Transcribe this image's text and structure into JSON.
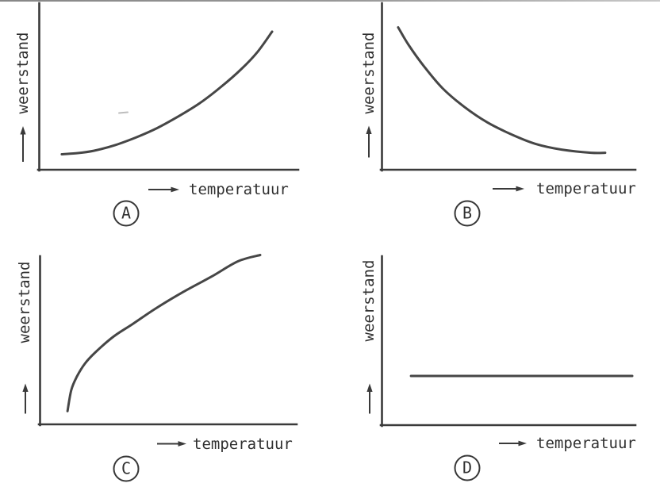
{
  "figure": {
    "ylabel": "weerstand",
    "xlabel": "temperatuur",
    "panel_labels": [
      "A",
      "B",
      "C",
      "D"
    ]
  },
  "colors": {
    "background": "#ffffff",
    "ink": "#3a3a3a",
    "curve": "#464646",
    "scan_edge": "#9a9a9a"
  },
  "chart_data": [
    {
      "type": "line",
      "panel": "A",
      "xlabel": "temperatuur",
      "ylabel": "weerstand",
      "trend": "increasing-convex (resistance rises ever faster with temperature)",
      "x": [
        0.087,
        0.149,
        0.21,
        0.293,
        0.375,
        0.455,
        0.538,
        0.62,
        0.7,
        0.782,
        0.844,
        0.899
      ],
      "y": [
        0.093,
        0.1,
        0.114,
        0.148,
        0.195,
        0.25,
        0.321,
        0.4,
        0.495,
        0.607,
        0.71,
        0.829
      ],
      "xlim": [
        0,
        1
      ],
      "ylim": [
        0,
        1
      ],
      "grid": false,
      "ticks": "none (qualitative sketch, arrowed axes only)",
      "legend": "none"
    },
    {
      "type": "line",
      "panel": "B",
      "xlabel": "temperatuur",
      "ylabel": "weerstand",
      "trend": "decreasing-convex (exponential-like decay levelling off)",
      "x": [
        0.064,
        0.105,
        0.168,
        0.24,
        0.324,
        0.418,
        0.512,
        0.607,
        0.71,
        0.826,
        0.882
      ],
      "y": [
        0.855,
        0.75,
        0.617,
        0.488,
        0.379,
        0.283,
        0.212,
        0.155,
        0.121,
        0.102,
        0.102
      ],
      "xlim": [
        0,
        1
      ],
      "ylim": [
        0,
        1
      ],
      "grid": false,
      "ticks": "none (qualitative sketch, arrowed axes only)",
      "legend": "none"
    },
    {
      "type": "line",
      "panel": "C",
      "xlabel": "temperatuur",
      "ylabel": "weerstand",
      "trend": "increasing-concave (steep rise that saturates, square-root-like)",
      "x": [
        0.107,
        0.122,
        0.144,
        0.175,
        0.215,
        0.286,
        0.361,
        0.453,
        0.556,
        0.67,
        0.772,
        0.859
      ],
      "y": [
        0.077,
        0.202,
        0.281,
        0.356,
        0.421,
        0.514,
        0.588,
        0.681,
        0.774,
        0.867,
        0.956,
        0.993
      ],
      "xlim": [
        0,
        1
      ],
      "ylim": [
        0,
        1
      ],
      "grid": false,
      "ticks": "none (qualitative sketch, arrowed axes only)",
      "legend": "none"
    },
    {
      "type": "line",
      "panel": "D",
      "xlabel": "temperatuur",
      "ylabel": "weerstand",
      "trend": "constant (resistance independent of temperature)",
      "x": [
        0.114,
        0.983
      ],
      "y": [
        0.291,
        0.291
      ],
      "xlim": [
        0,
        1
      ],
      "ylim": [
        0,
        1
      ],
      "grid": false,
      "ticks": "none (qualitative sketch, arrowed axes only)",
      "legend": "none"
    }
  ]
}
